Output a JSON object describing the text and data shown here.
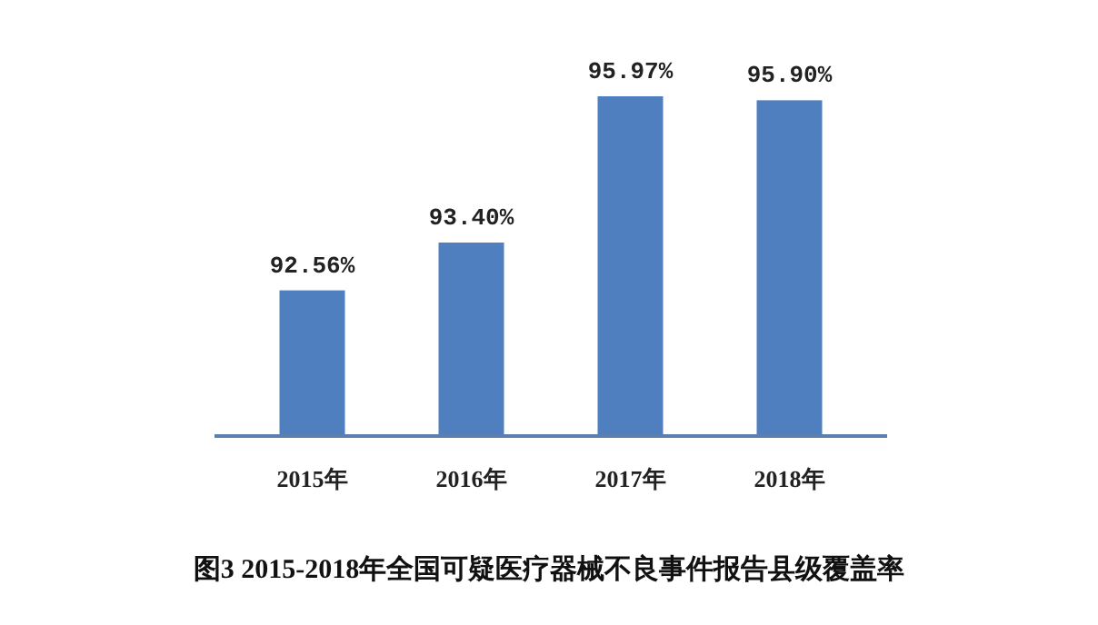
{
  "chart_data": {
    "type": "bar",
    "title": "图3 2015-2018年全国可疑医疗器械不良事件报告县级覆盖率",
    "categories": [
      "2015年",
      "2016年",
      "2017年",
      "2018年"
    ],
    "values": [
      92.56,
      93.4,
      95.97,
      95.9
    ],
    "value_labels": [
      "92.56%",
      "93.40%",
      "95.97%",
      "95.90%"
    ],
    "color": "#4f7fbf",
    "ylim": [
      90,
      95.97
    ]
  }
}
